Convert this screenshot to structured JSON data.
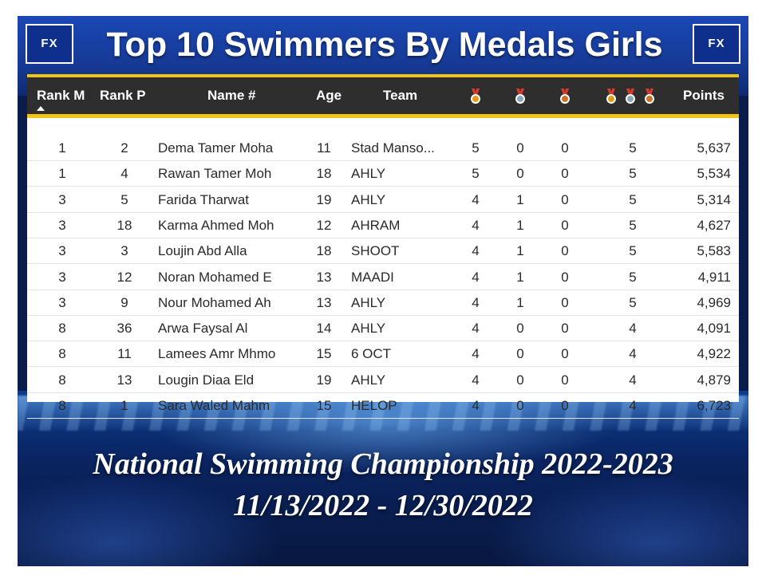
{
  "header": {
    "title": "Top 10 Swimmers By Medals Girls",
    "logo_text": "FX"
  },
  "table": {
    "columns": {
      "rank_m": "Rank M",
      "rank_p": "Rank P",
      "name": "Name #",
      "age": "Age",
      "team": "Team",
      "points": "Points"
    },
    "medal_icons": {
      "gold": "gold-medal-icon",
      "silver": "silver-medal-icon",
      "bronze": "bronze-medal-icon",
      "total": "all-medals-icon"
    },
    "colors": {
      "gold": "#e39b1b",
      "silver": "#8fa6b8",
      "bronze": "#c9722a",
      "header_bar": "#f2c414"
    },
    "rows": [
      {
        "rank_m": "1",
        "rank_p": "2",
        "name": "Dema Tamer Moha",
        "age": "11",
        "team": "Stad Manso...",
        "gold": "5",
        "silver": "0",
        "bronze": "0",
        "total": "5",
        "points": "5,637"
      },
      {
        "rank_m": "1",
        "rank_p": "4",
        "name": "Rawan Tamer Moh",
        "age": "18",
        "team": "AHLY",
        "gold": "5",
        "silver": "0",
        "bronze": "0",
        "total": "5",
        "points": "5,534"
      },
      {
        "rank_m": "3",
        "rank_p": "5",
        "name": "Farida Tharwat",
        "age": "19",
        "team": "AHLY",
        "gold": "4",
        "silver": "1",
        "bronze": "0",
        "total": "5",
        "points": "5,314"
      },
      {
        "rank_m": "3",
        "rank_p": "18",
        "name": "Karma Ahmed Moh",
        "age": "12",
        "team": "AHRAM",
        "gold": "4",
        "silver": "1",
        "bronze": "0",
        "total": "5",
        "points": "4,627"
      },
      {
        "rank_m": "3",
        "rank_p": "3",
        "name": "Loujin Abd Alla",
        "age": "18",
        "team": "SHOOT",
        "gold": "4",
        "silver": "1",
        "bronze": "0",
        "total": "5",
        "points": "5,583"
      },
      {
        "rank_m": "3",
        "rank_p": "12",
        "name": "Noran Mohamed E",
        "age": "13",
        "team": "MAADI",
        "gold": "4",
        "silver": "1",
        "bronze": "0",
        "total": "5",
        "points": "4,911"
      },
      {
        "rank_m": "3",
        "rank_p": "9",
        "name": "Nour Mohamed Ah",
        "age": "13",
        "team": "AHLY",
        "gold": "4",
        "silver": "1",
        "bronze": "0",
        "total": "5",
        "points": "4,969"
      },
      {
        "rank_m": "8",
        "rank_p": "36",
        "name": "Arwa Faysal Al",
        "age": "14",
        "team": "AHLY",
        "gold": "4",
        "silver": "0",
        "bronze": "0",
        "total": "4",
        "points": "4,091"
      },
      {
        "rank_m": "8",
        "rank_p": "11",
        "name": "Lamees Amr Mhmo",
        "age": "15",
        "team": "6 OCT",
        "gold": "4",
        "silver": "0",
        "bronze": "0",
        "total": "4",
        "points": "4,922"
      },
      {
        "rank_m": "8",
        "rank_p": "13",
        "name": "Lougin Diaa Eld",
        "age": "19",
        "team": "AHLY",
        "gold": "4",
        "silver": "0",
        "bronze": "0",
        "total": "4",
        "points": "4,879"
      },
      {
        "rank_m": "8",
        "rank_p": "1",
        "name": "Sara Waled Mahm",
        "age": "15",
        "team": "HELOP",
        "gold": "4",
        "silver": "0",
        "bronze": "0",
        "total": "4",
        "points": "6,723"
      }
    ]
  },
  "footer": {
    "event": "National Swimming Championship 2022-2023",
    "dates": "11/13/2022 - 12/30/2022"
  }
}
